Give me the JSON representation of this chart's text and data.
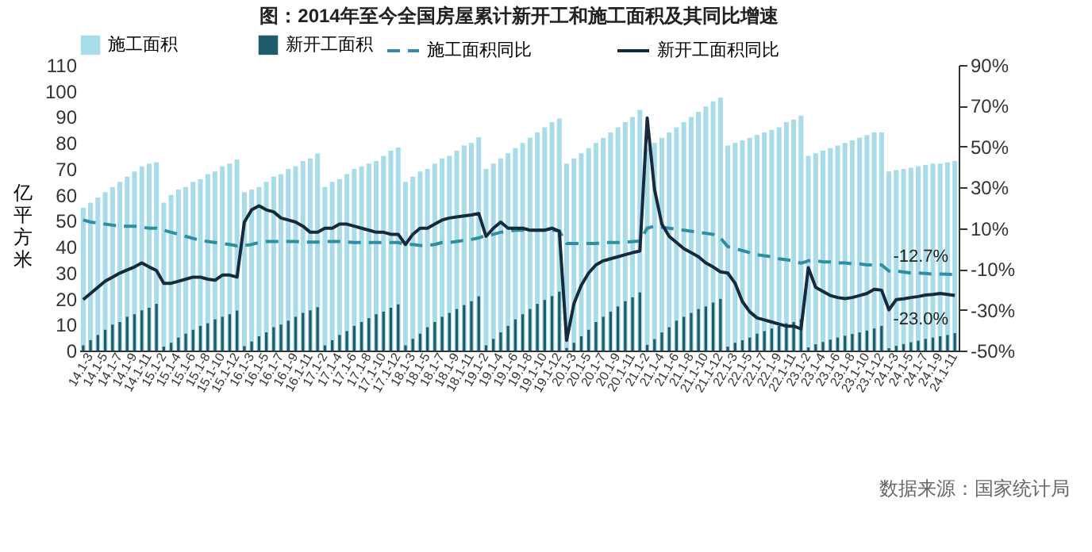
{
  "chart_data": {
    "type": "bar",
    "title": "图：2014年至今全国房屋累计新开工和施工面积及其同比增速",
    "ylabel": "亿平方米",
    "categories": [
      null,
      "14.1-3",
      null,
      "14.1-5",
      null,
      "14.1-7",
      null,
      "14.1-9",
      null,
      "14.1-11",
      null,
      "15.1-2",
      null,
      "15.1-4",
      null,
      "15.1-6",
      null,
      "15.1-8",
      null,
      "15.1-10",
      null,
      "15.1-12",
      null,
      "16.1-3",
      null,
      "16.1-5",
      null,
      "16.1-7",
      null,
      "16.1-9",
      null,
      "16.1-11",
      null,
      "17.1-2",
      null,
      "17.1-4",
      null,
      "17.1-6",
      null,
      "17.1-8",
      null,
      "17.1-10",
      null,
      "17.1-12",
      null,
      "18.1-3",
      null,
      "18.1-5",
      null,
      "18.1-7",
      null,
      "18.1-9",
      null,
      "18.1-11",
      null,
      "19.1-2",
      null,
      "19.1-4",
      null,
      "19.1-6",
      null,
      "19.1-8",
      null,
      "19.1-10",
      null,
      "19.1-12",
      null,
      "20.1-3",
      null,
      "20.1-5",
      null,
      "20.1-7",
      null,
      "20.1-9",
      null,
      "20.1-11",
      null,
      "21.1-2",
      null,
      "21.1-4",
      null,
      "21.1-6",
      null,
      "21.1-8",
      null,
      "21.1-10",
      null,
      "21.1-12",
      null,
      "22.1-3",
      null,
      "22.1-5",
      null,
      "22.1-7",
      null,
      "22.1-9",
      null,
      "22.1-11",
      null,
      "23.1-2",
      null,
      "23.1-4",
      null,
      "23.1-6",
      null,
      "23.1-8",
      null,
      "23.1-10",
      null,
      "23.1-12",
      null,
      "24.1-3",
      null,
      "24.1-5",
      null,
      "24.1-7",
      null,
      "24.1-9",
      null,
      "24.1-11"
    ],
    "series": [
      {
        "name": "施工面积",
        "color": "#a8dce8",
        "values": [
          55,
          57,
          59,
          61,
          63,
          65,
          67,
          69,
          71,
          72,
          72.6,
          57,
          60,
          62,
          63,
          65,
          66,
          68,
          69,
          71,
          72,
          73.6,
          61,
          62,
          63,
          65,
          67,
          68,
          70,
          71,
          73,
          74,
          75.9,
          63,
          65,
          66,
          68,
          70,
          71,
          72,
          73,
          75,
          77,
          78.2,
          65,
          67,
          69,
          70,
          72,
          74,
          75,
          77,
          79,
          80,
          82.2,
          70,
          72,
          74,
          76,
          78,
          80,
          82,
          84,
          86,
          88,
          89.4,
          72,
          74,
          76,
          78,
          80,
          82,
          84,
          86,
          88,
          90,
          92.7,
          78,
          80,
          82,
          84,
          86,
          88,
          90,
          92,
          94,
          96,
          97.5,
          79,
          80,
          81,
          82,
          83,
          84,
          85,
          86,
          88,
          89,
          90.5,
          75,
          76,
          77,
          78,
          79,
          80,
          81,
          82,
          83,
          84,
          84,
          69,
          69.5,
          70,
          70.5,
          71,
          71.5,
          72,
          72,
          72.5,
          73
        ]
      },
      {
        "name": "新开工面积",
        "color": "#1e5b6b",
        "values": [
          2,
          4,
          6,
          8,
          10,
          11,
          13,
          14,
          15.5,
          16.5,
          18,
          1.5,
          3,
          5,
          6.5,
          8,
          9.5,
          10.5,
          12,
          13,
          14,
          15.4,
          1.7,
          3.5,
          5.5,
          7,
          9,
          10,
          11.5,
          13,
          14.5,
          15.5,
          16.7,
          2,
          4,
          6,
          7.5,
          9.5,
          11,
          12.5,
          14,
          15,
          16.5,
          17.8,
          2,
          4.5,
          6.5,
          9,
          11,
          13,
          14.5,
          16,
          17.5,
          19,
          20.9,
          2,
          4.5,
          7,
          9.5,
          12,
          14,
          16,
          18,
          19.5,
          21,
          22.7,
          1,
          3,
          5.5,
          8,
          11,
          13,
          15,
          17,
          19,
          20.5,
          22.4,
          2.2,
          4.4,
          7,
          9,
          11.5,
          13,
          14.5,
          16,
          17,
          18.5,
          19.9,
          1.5,
          3,
          4,
          5,
          6.5,
          7.5,
          8.5,
          9.5,
          10.5,
          11,
          12,
          1.2,
          2.4,
          3.3,
          4.2,
          5,
          5.7,
          6.4,
          7,
          7.7,
          8.5,
          9.5,
          0.9,
          1.8,
          2.5,
          3.2,
          3.8,
          4.5,
          5,
          5.5,
          6,
          6.7
        ]
      },
      {
        "name": "施工面积同比",
        "type": "line",
        "axis": "y2",
        "line_style": "dashed",
        "color": "#2f8e9f",
        "values": [
          14,
          13,
          12.5,
          12,
          11.5,
          11,
          11,
          11,
          10.5,
          10,
          10,
          9,
          8,
          7,
          6,
          5,
          4,
          3.5,
          3,
          2.5,
          2,
          1.3,
          1.5,
          2,
          3,
          3.5,
          3.5,
          3.5,
          3.5,
          3.5,
          3.2,
          3.2,
          3.2,
          3.5,
          3.5,
          3.5,
          3.2,
          3,
          3,
          3,
          3,
          3,
          3,
          3,
          2,
          2,
          1.5,
          1.5,
          2,
          3,
          3,
          3.5,
          4,
          4.5,
          5.2,
          6.5,
          7,
          8,
          8.5,
          9,
          9,
          9,
          9,
          9,
          9,
          8.7,
          2.5,
          2.5,
          2.5,
          2.5,
          2.5,
          3,
          3,
          3,
          3,
          3.5,
          3.7,
          10,
          11,
          10.5,
          10,
          9.5,
          9,
          8.5,
          8,
          7.5,
          7,
          5.2,
          1,
          0,
          -1,
          -2,
          -3,
          -3.5,
          -4,
          -5,
          -5.5,
          -6,
          -7.2,
          -6,
          -6,
          -6.5,
          -6.5,
          -7,
          -7,
          -7.5,
          -7.5,
          -8,
          -8,
          -8,
          -11,
          -11,
          -11.5,
          -12,
          -12,
          -12.2,
          -12.5,
          -12.5,
          -12.6,
          -12.7
        ],
        "value_labels": [
          null,
          null,
          null,
          null,
          null,
          null,
          null,
          null,
          null,
          null,
          null,
          null,
          null,
          null,
          null,
          null,
          null,
          null,
          null,
          null,
          null,
          null,
          null,
          null,
          null,
          null,
          null,
          null,
          null,
          null,
          null,
          null,
          null,
          null,
          null,
          null,
          null,
          null,
          null,
          null,
          null,
          null,
          null,
          null,
          null,
          null,
          null,
          null,
          null,
          null,
          null,
          null,
          null,
          null,
          null,
          null,
          null,
          null,
          null,
          null,
          null,
          null,
          null,
          null,
          null,
          null,
          null,
          null,
          null,
          null,
          null,
          null,
          null,
          null,
          null,
          null,
          null,
          null,
          null,
          null,
          null,
          null,
          null,
          null,
          null,
          null,
          null,
          null,
          null,
          null,
          null,
          null,
          null,
          null,
          null,
          null,
          null,
          null,
          null,
          null,
          null,
          null,
          null,
          null,
          null,
          null,
          null,
          null,
          null,
          null,
          null,
          null,
          null,
          null,
          null,
          null,
          null,
          null,
          null,
          "-12.7%"
        ]
      },
      {
        "name": "新开工面积同比",
        "type": "line",
        "axis": "y2",
        "line_style": "solid",
        "color": "#17293d",
        "values": [
          -25,
          -22,
          -19,
          -16,
          -14,
          -12,
          -10.5,
          -9,
          -7,
          -9,
          -10.7,
          -17,
          -17,
          -16,
          -15,
          -14,
          -14,
          -15,
          -15.5,
          -13,
          -13,
          -14,
          13,
          19,
          21,
          19,
          18,
          15,
          14,
          13,
          11,
          8,
          8,
          10,
          10,
          12,
          12,
          11,
          10,
          9,
          8,
          8,
          7,
          7,
          2,
          7,
          10,
          10,
          12,
          14,
          15,
          15.5,
          16,
          16.5,
          17.2,
          6,
          10,
          13,
          10,
          10,
          10,
          9,
          9,
          9,
          10,
          8.5,
          -45,
          -27,
          -18,
          -12,
          -8,
          -6,
          -5,
          -4,
          -3,
          -2,
          -1.2,
          64,
          29,
          12,
          6,
          3,
          0,
          -2,
          -4,
          -7,
          -9,
          -11.4,
          -12,
          -17,
          -26,
          -31,
          -34,
          -35,
          -36,
          -37,
          -38,
          -38,
          -39.4,
          -9.4,
          -19,
          -21,
          -23,
          -24,
          -24.5,
          -24,
          -23,
          -22,
          -20,
          -20.4,
          -30,
          -25,
          -24.6,
          -24,
          -23.5,
          -22.8,
          -22.5,
          -22,
          -22.5,
          -23.0
        ],
        "value_labels": [
          null,
          null,
          null,
          null,
          null,
          null,
          null,
          null,
          null,
          null,
          null,
          null,
          null,
          null,
          null,
          null,
          null,
          null,
          null,
          null,
          null,
          null,
          null,
          null,
          null,
          null,
          null,
          null,
          null,
          null,
          null,
          null,
          null,
          null,
          null,
          null,
          null,
          null,
          null,
          null,
          null,
          null,
          null,
          null,
          null,
          null,
          null,
          null,
          null,
          null,
          null,
          null,
          null,
          null,
          null,
          null,
          null,
          null,
          null,
          null,
          null,
          null,
          null,
          null,
          null,
          null,
          null,
          null,
          null,
          null,
          null,
          null,
          null,
          null,
          null,
          null,
          null,
          null,
          null,
          null,
          null,
          null,
          null,
          null,
          null,
          null,
          null,
          null,
          null,
          null,
          null,
          null,
          null,
          null,
          null,
          null,
          null,
          null,
          null,
          null,
          null,
          null,
          null,
          null,
          null,
          null,
          null,
          null,
          null,
          null,
          null,
          null,
          null,
          null,
          null,
          null,
          null,
          null,
          null,
          "-23.0%"
        ]
      }
    ],
    "ylim": [
      0,
      110
    ],
    "yticks": [
      0,
      10,
      20,
      30,
      40,
      50,
      60,
      70,
      80,
      90,
      100,
      110
    ],
    "y2lim": [
      -50,
      90
    ],
    "y2ticks": [
      {
        "value": -50,
        "label": "-50%"
      },
      {
        "value": -30,
        "label": "-30%"
      },
      {
        "value": -10,
        "label": "-10%"
      },
      {
        "value": 10,
        "label": "10%"
      },
      {
        "value": 30,
        "label": "30%"
      },
      {
        "value": 50,
        "label": "50%"
      },
      {
        "value": 70,
        "label": "70%"
      },
      {
        "value": 90,
        "label": "90%"
      }
    ],
    "legend": "top",
    "annotations": [
      "数据来源：国家统计局"
    ]
  }
}
